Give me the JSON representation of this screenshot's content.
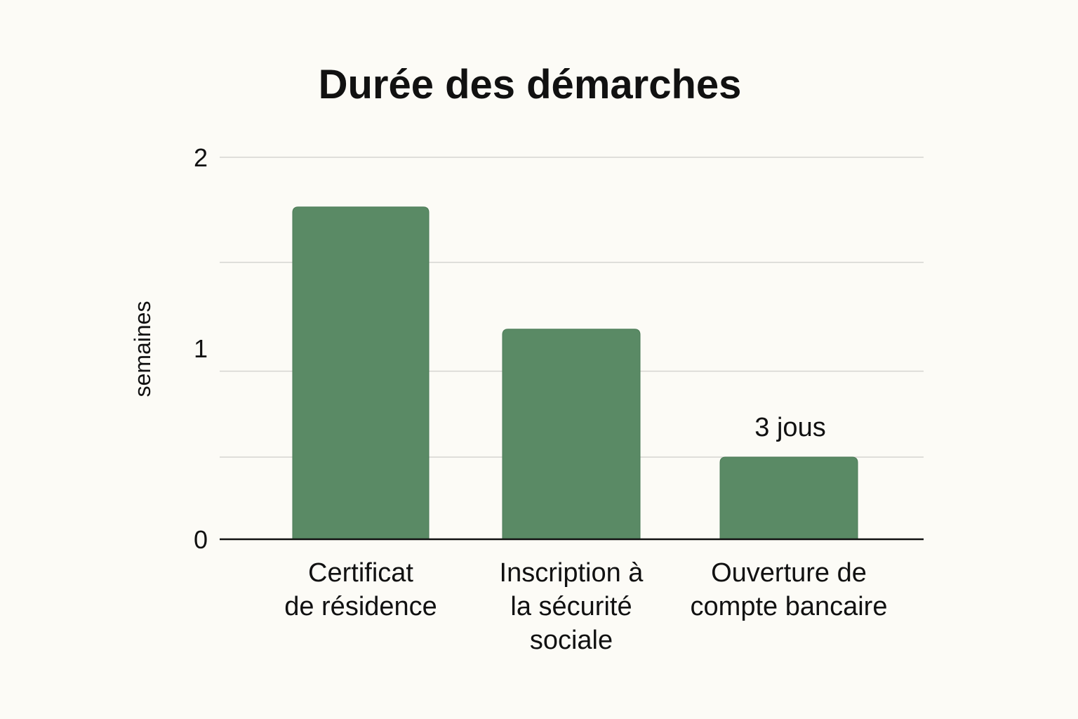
{
  "chart_data": {
    "type": "bar",
    "title": "Durée des démarches",
    "xlabel": "",
    "ylabel": "semaines",
    "categories": [
      [
        "Certificat",
        "de résidence"
      ],
      [
        "Inscription à",
        "la sécurité",
        "sociale"
      ],
      [
        "Ouverture de",
        "compte bancaire"
      ]
    ],
    "values": [
      1.74,
      1.1,
      0.43
    ],
    "data_labels": [
      "",
      "",
      "3 jous"
    ],
    "ylim": [
      0,
      2
    ],
    "yticks": [
      {
        "value": 0,
        "label": "0"
      },
      {
        "value": 1,
        "label": "1"
      },
      {
        "value": 2,
        "label": "2"
      }
    ],
    "gridlines": [
      0.43,
      0.88,
      1.45,
      2
    ],
    "grid": true,
    "legend": "none",
    "colors": {
      "bar": "#5a8a65",
      "background": "#fcfbf6"
    }
  }
}
